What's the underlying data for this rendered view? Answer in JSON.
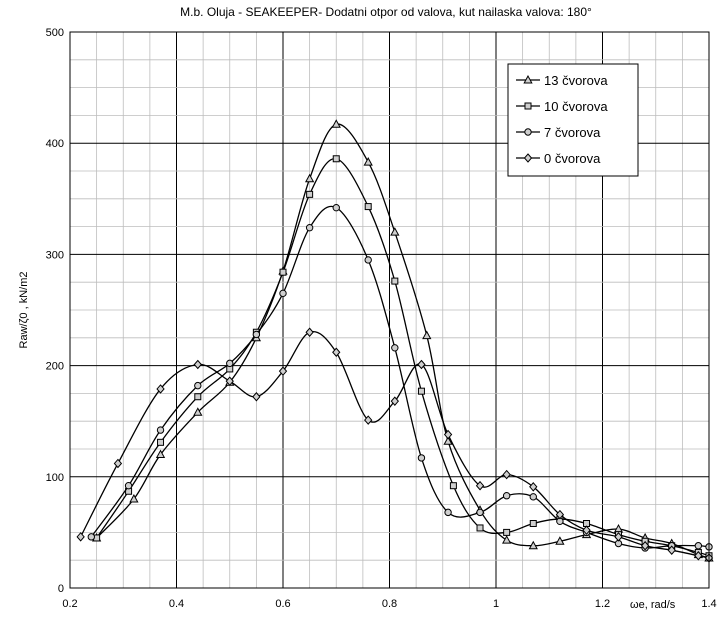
{
  "chart_data": {
    "type": "line",
    "title": "M.b. Oluja -  SEAKEEPER- Dodatni otpor od valova, kut nailaska valova: 180°",
    "xlabel": "ωe, rad/s",
    "ylabel": "Raw/ζ0 , kN/m2",
    "xlim": [
      0.2,
      1.4
    ],
    "ylim": [
      0,
      500
    ],
    "x_ticks": [
      "0.2",
      "0.4",
      "0.6",
      "0.8",
      "1",
      "1.2",
      "1.4"
    ],
    "y_ticks": [
      "0",
      "100",
      "200",
      "300",
      "400",
      "500"
    ],
    "grid": true,
    "legend_position": "top-right",
    "series": [
      {
        "name": "13 čvorova",
        "marker": "triangle",
        "x": [
          0.25,
          0.32,
          0.37,
          0.44,
          0.5,
          0.55,
          0.6,
          0.65,
          0.7,
          0.76,
          0.81,
          0.87,
          0.91,
          0.97,
          1.02,
          1.07,
          1.12,
          1.17,
          1.23,
          1.28,
          1.33,
          1.38,
          1.4
        ],
        "values": [
          45,
          80,
          120,
          158,
          185,
          225,
          285,
          368,
          417,
          383,
          320,
          227,
          132,
          70,
          43,
          38,
          42,
          48,
          53,
          45,
          40,
          30,
          27
        ]
      },
      {
        "name": "10 čvorova",
        "marker": "square",
        "x": [
          0.25,
          0.31,
          0.37,
          0.44,
          0.5,
          0.55,
          0.6,
          0.65,
          0.7,
          0.76,
          0.81,
          0.86,
          0.92,
          0.97,
          1.02,
          1.07,
          1.12,
          1.17,
          1.23,
          1.28,
          1.33,
          1.38,
          1.4
        ],
        "values": [
          45,
          87,
          131,
          172,
          197,
          230,
          284,
          354,
          386,
          343,
          276,
          177,
          92,
          54,
          50,
          58,
          62,
          58,
          48,
          42,
          38,
          32,
          29
        ]
      },
      {
        "name": "7 čvorova",
        "marker": "circle",
        "x": [
          0.24,
          0.31,
          0.37,
          0.44,
          0.5,
          0.55,
          0.6,
          0.65,
          0.7,
          0.76,
          0.81,
          0.86,
          0.91,
          0.97,
          1.02,
          1.07,
          1.12,
          1.17,
          1.23,
          1.28,
          1.33,
          1.38,
          1.4
        ],
        "values": [
          46,
          92,
          142,
          182,
          202,
          228,
          265,
          324,
          342,
          295,
          216,
          117,
          68,
          68,
          83,
          82,
          60,
          50,
          40,
          36,
          38,
          38,
          37
        ]
      },
      {
        "name": "0 čvorova",
        "marker": "diamond",
        "x": [
          0.22,
          0.29,
          0.37,
          0.44,
          0.5,
          0.55,
          0.6,
          0.65,
          0.7,
          0.76,
          0.81,
          0.86,
          0.91,
          0.97,
          1.02,
          1.07,
          1.12,
          1.17,
          1.23,
          1.28,
          1.33,
          1.38,
          1.4
        ],
        "values": [
          46,
          112,
          179,
          201,
          186,
          172,
          195,
          230,
          212,
          151,
          168,
          201,
          138,
          92,
          102,
          91,
          66,
          52,
          46,
          38,
          34,
          29,
          27
        ]
      }
    ]
  }
}
